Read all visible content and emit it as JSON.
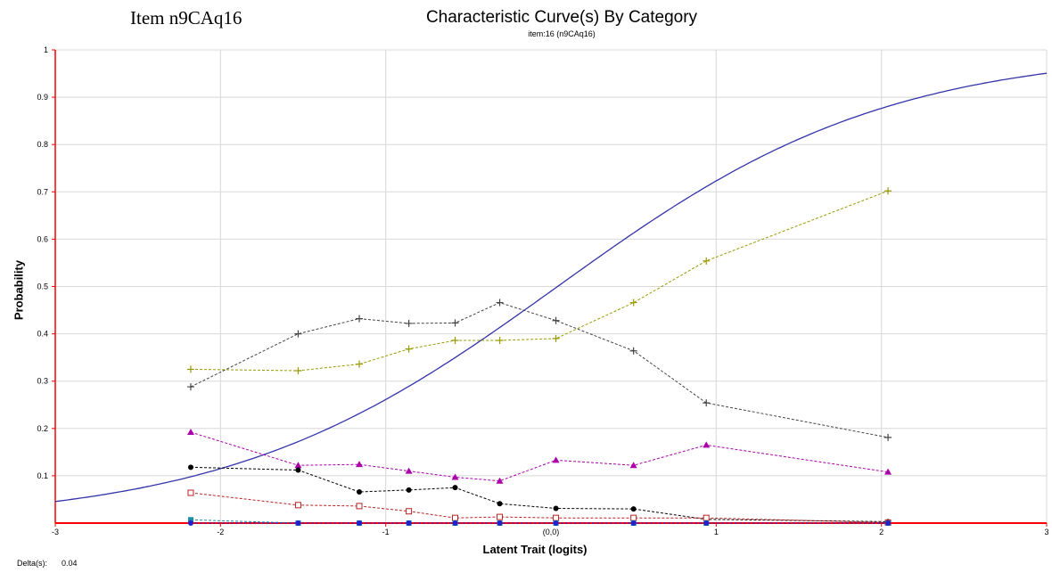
{
  "item_label": "Item n9CAq16",
  "chart_data": {
    "type": "line",
    "title": "Characteristic Curve(s) By Category",
    "subtitle": "item:16 (n9CAq16)",
    "xlabel": "Latent Trait (logits)",
    "ylabel": "Probability",
    "xlim": [
      -3,
      3
    ],
    "ylim": [
      0,
      1
    ],
    "x_ticks": [
      -3,
      -2,
      -1,
      1,
      2,
      3
    ],
    "x_tick_labels": [
      "-3",
      "-2",
      "-1",
      "1",
      "2",
      "3"
    ],
    "origin_label": "(0,0)",
    "y_ticks": [
      0.1,
      0.2,
      0.3,
      0.4,
      0.5,
      0.6,
      0.7,
      0.8,
      0.9,
      1
    ],
    "y_tick_labels": [
      "0.1",
      "0.2",
      "0.3",
      "0.4",
      "0.5",
      "0.6",
      "0.7",
      "0.8",
      "0.9",
      "1"
    ],
    "grid": true,
    "axis_color": "#ff0000",
    "model_curve": {
      "type": "logistic",
      "delta": 0.04,
      "color": "#3333aa"
    },
    "series": [
      {
        "marker": "plus",
        "color": "#999900",
        "x": [
          -2.18,
          -1.53,
          -1.16,
          -0.86,
          -0.58,
          -0.31,
          0.03,
          0.5,
          0.94,
          2.04
        ],
        "y": [
          0.325,
          0.322,
          0.336,
          0.368,
          0.386,
          0.386,
          0.39,
          0.466,
          0.554,
          0.702
        ]
      },
      {
        "marker": "plus",
        "color": "#444444",
        "x": [
          -2.18,
          -1.53,
          -1.16,
          -0.86,
          -0.58,
          -0.31,
          0.03,
          0.5,
          0.94,
          2.04
        ],
        "y": [
          0.288,
          0.4,
          0.432,
          0.422,
          0.423,
          0.466,
          0.428,
          0.364,
          0.254,
          0.181
        ]
      },
      {
        "marker": "triangle",
        "color": "#aa00aa",
        "x": [
          -2.18,
          -1.53,
          -1.16,
          -0.86,
          -0.58,
          -0.31,
          0.03,
          0.5,
          0.94,
          2.04
        ],
        "y": [
          0.192,
          0.122,
          0.124,
          0.11,
          0.097,
          0.089,
          0.133,
          0.122,
          0.165,
          0.108
        ]
      },
      {
        "marker": "dot",
        "color": "#000000",
        "x": [
          -2.18,
          -1.53,
          -1.16,
          -0.86,
          -0.58,
          -0.31,
          0.03,
          0.5,
          0.94,
          2.04
        ],
        "y": [
          0.118,
          0.112,
          0.066,
          0.07,
          0.075,
          0.041,
          0.031,
          0.03,
          0.008,
          0.003
        ]
      },
      {
        "marker": "square-open",
        "color": "#bb2222",
        "x": [
          -2.18,
          -1.53,
          -1.16,
          -0.86,
          -0.58,
          -0.31,
          0.03,
          0.5,
          0.94,
          2.04
        ],
        "y": [
          0.064,
          0.038,
          0.036,
          0.025,
          0.011,
          0.013,
          0.011,
          0.011,
          0.011,
          0.001
        ]
      },
      {
        "marker": "square",
        "color": "#1a8ca8",
        "x": [
          -2.18,
          -1.53,
          -1.16,
          -0.86,
          -0.58,
          -0.31,
          0.03,
          0.5,
          0.94,
          2.04
        ],
        "y": [
          0.007,
          0.0,
          0.0,
          0.0,
          0.0,
          0.0,
          0.0,
          0.0,
          0.0,
          0.0
        ]
      },
      {
        "marker": "dot",
        "color": "#2222cc",
        "x": [
          -2.18,
          -1.53,
          -1.16,
          -0.86,
          -0.58,
          -0.31,
          0.03,
          0.5,
          0.94,
          2.04
        ],
        "y": [
          0.0,
          0.0,
          0.0,
          0.0,
          0.0,
          0.0,
          0.0,
          0.0,
          0.0,
          0.0
        ]
      }
    ]
  },
  "delta_label": "Delta(s):",
  "delta_value": "0.04"
}
